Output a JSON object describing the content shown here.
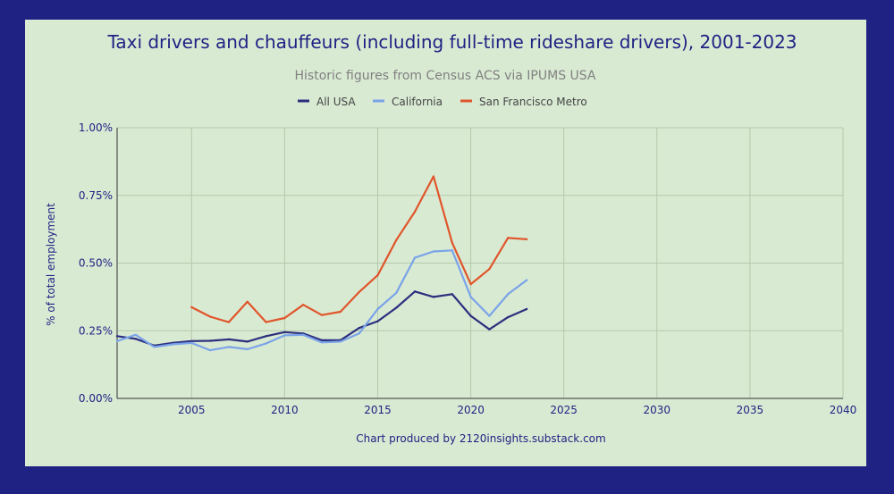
{
  "colors": {
    "frame": "#1f2283",
    "panel": "#d9ead3",
    "grid": "#b4c9ab",
    "all_usa": "#2b2f7e",
    "california": "#7aa3e8",
    "sf_metro": "#e0552a"
  },
  "chart_data": {
    "type": "line",
    "title": "Taxi drivers and chauffeurs (including full-time rideshare drivers), 2001-2023",
    "subtitle": "Historic figures from Census ACS via IPUMS USA",
    "xlabel": "",
    "ylabel": "% of total employment",
    "footer": "Chart produced by 2120insights.substack.com",
    "xlim": [
      2001,
      2040
    ],
    "ylim": [
      0,
      1.0
    ],
    "x_ticks": [
      2005,
      2010,
      2015,
      2020,
      2025,
      2030,
      2035,
      2040
    ],
    "y_ticks": [
      0,
      0.25,
      0.5,
      0.75,
      1.0
    ],
    "y_tick_labels": [
      "0.00%",
      "0.25%",
      "0.50%",
      "0.75%",
      "1.00%"
    ],
    "legend_position": "top-center",
    "grid": true,
    "series": [
      {
        "name": "All USA",
        "color": "#2b2f7e",
        "x": [
          2001,
          2002,
          2003,
          2004,
          2005,
          2006,
          2007,
          2008,
          2009,
          2010,
          2011,
          2012,
          2013,
          2014,
          2015,
          2016,
          2017,
          2018,
          2019,
          2020,
          2021,
          2022,
          2023
        ],
        "values": [
          0.23,
          0.22,
          0.195,
          0.205,
          0.212,
          0.213,
          0.218,
          0.21,
          0.23,
          0.245,
          0.24,
          0.215,
          0.215,
          0.26,
          0.285,
          0.335,
          0.395,
          0.375,
          0.385,
          0.305,
          0.255,
          0.3,
          0.33
        ]
      },
      {
        "name": "California",
        "color": "#7aa3e8",
        "x": [
          2001,
          2002,
          2003,
          2004,
          2005,
          2006,
          2007,
          2008,
          2009,
          2010,
          2011,
          2012,
          2013,
          2014,
          2015,
          2016,
          2017,
          2018,
          2019,
          2020,
          2021,
          2022,
          2023
        ],
        "values": [
          0.212,
          0.235,
          0.19,
          0.2,
          0.205,
          0.178,
          0.19,
          0.182,
          0.203,
          0.233,
          0.235,
          0.207,
          0.21,
          0.24,
          0.33,
          0.39,
          0.52,
          0.543,
          0.547,
          0.375,
          0.305,
          0.385,
          0.437
        ]
      },
      {
        "name": "San Francisco Metro",
        "color": "#e0552a",
        "x": [
          2005,
          2006,
          2007,
          2008,
          2009,
          2010,
          2011,
          2012,
          2013,
          2014,
          2015,
          2016,
          2017,
          2018,
          2019,
          2020,
          2021,
          2022,
          2023
        ],
        "values": [
          0.337,
          0.302,
          0.282,
          0.357,
          0.282,
          0.297,
          0.346,
          0.308,
          0.32,
          0.393,
          0.455,
          0.585,
          0.69,
          0.82,
          0.575,
          0.422,
          0.478,
          0.593,
          0.588
        ]
      }
    ]
  }
}
